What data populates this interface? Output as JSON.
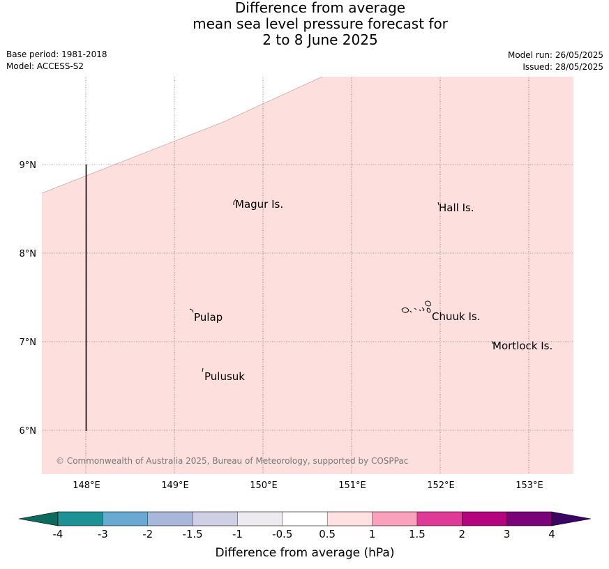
{
  "title": {
    "line1": "Difference from average",
    "line2": "mean sea level pressure forecast for",
    "line3": "2 to 8 June 2025"
  },
  "meta": {
    "base_period": "Base period: 1981-2018",
    "model": "Model: ACCESS-S2",
    "model_run": "Model run: 26/05/2025",
    "issued": "Issued: 28/05/2025"
  },
  "map": {
    "lon_ticks": [
      "148°E",
      "149°E",
      "150°E",
      "151°E",
      "152°E",
      "153°E"
    ],
    "lat_ticks": [
      "9°N",
      "8°N",
      "7°N",
      "6°N"
    ],
    "fill_color": "#fddfdd",
    "places": [
      {
        "name": "Magur Is."
      },
      {
        "name": "Hall Is."
      },
      {
        "name": "Pulap"
      },
      {
        "name": "Chuuk Is."
      },
      {
        "name": "Mortlock Is."
      },
      {
        "name": "Pulusuk"
      }
    ],
    "copyright": "© Commonwealth of Australia 2025, Bureau of Meteorology, supported by COSPPac"
  },
  "colorbar": {
    "title": "Difference from average (hPa)",
    "ticks": [
      "-4",
      "-3",
      "-2",
      "-1.5",
      "-1",
      "-0.5",
      "0.5",
      "1",
      "1.5",
      "2",
      "3",
      "4"
    ],
    "under_color": "#0b6b5e",
    "over_color": "#3a0563",
    "colors": [
      "#1d9296",
      "#6aaad2",
      "#a8b8da",
      "#cfcfe6",
      "#eeebf0",
      "#ffffff",
      "#fee1e0",
      "#f9a1bd",
      "#df3a98",
      "#b4057e",
      "#7b0379"
    ]
  }
}
